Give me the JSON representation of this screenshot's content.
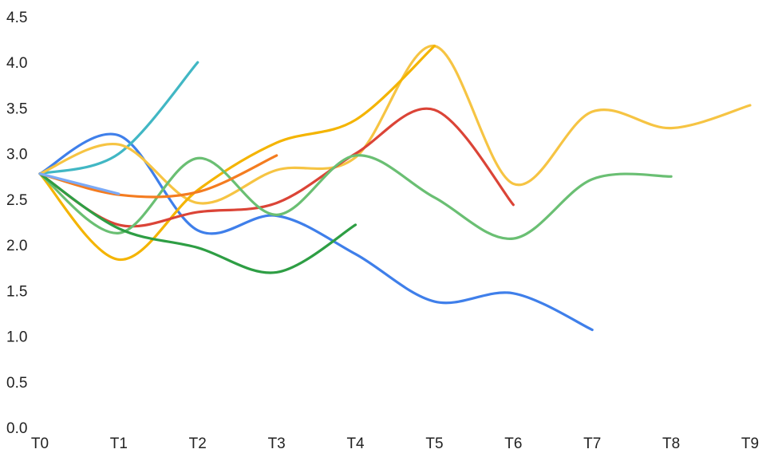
{
  "chart_data": {
    "type": "line",
    "title": "",
    "xlabel": "",
    "ylabel": "",
    "categories": [
      "T0",
      "T1",
      "T2",
      "T3",
      "T4",
      "T5",
      "T6",
      "T7",
      "T8",
      "T9"
    ],
    "ylim": [
      0,
      4.5
    ],
    "y_ticks": [
      "0.0",
      "0.5",
      "1.0",
      "1.5",
      "2.0",
      "2.5",
      "3.0",
      "3.5",
      "4.0",
      "4.5"
    ],
    "grid": false,
    "legend": "none",
    "smooth": true,
    "series": [
      {
        "color": "#3F7FEA",
        "values": [
          2.78,
          3.2,
          2.16,
          2.32,
          1.9,
          1.38,
          1.47,
          1.07,
          null,
          null
        ]
      },
      {
        "color": "#41B7C4",
        "values": [
          2.78,
          3.0,
          4.0,
          null,
          null,
          null,
          null,
          null,
          null,
          null
        ]
      },
      {
        "color": "#F6C443",
        "values": [
          2.78,
          3.1,
          2.46,
          2.82,
          2.96,
          4.18,
          2.67,
          3.46,
          3.28,
          3.53
        ]
      },
      {
        "color": "#F4B400",
        "values": [
          2.78,
          1.84,
          2.6,
          3.12,
          3.37,
          4.18,
          null,
          null,
          null,
          null
        ]
      },
      {
        "color": "#DB4437",
        "values": [
          2.78,
          2.22,
          2.36,
          2.46,
          3.0,
          3.48,
          2.44,
          null,
          null,
          null
        ]
      },
      {
        "color": "#6ABF73",
        "values": [
          2.78,
          2.13,
          2.95,
          2.33,
          2.98,
          2.52,
          2.07,
          2.72,
          2.75,
          null
        ]
      },
      {
        "color": "#2E9E44",
        "values": [
          2.78,
          2.18,
          1.97,
          1.7,
          2.22,
          null,
          null,
          null,
          null,
          null
        ]
      },
      {
        "color": "#F47C20",
        "values": [
          2.78,
          2.55,
          2.58,
          2.98,
          null,
          null,
          null,
          null,
          null,
          null
        ]
      },
      {
        "color": "#7BAAF7",
        "values": [
          2.78,
          2.56,
          null,
          null,
          null,
          null,
          null,
          null,
          null,
          null
        ]
      }
    ]
  }
}
